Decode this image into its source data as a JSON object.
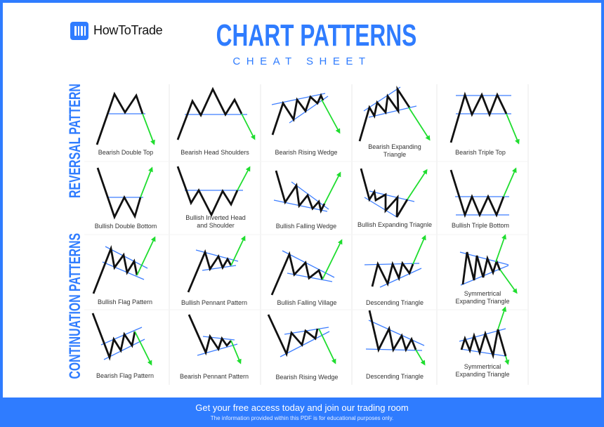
{
  "brand": {
    "logo_text": "HowToTrade",
    "accent": "#2f7cff"
  },
  "header": {
    "title": "CHART PATTERNS",
    "subtitle": "CHEAT SHEET"
  },
  "sections": {
    "reversal": "REVERSAL PATTERN",
    "continuation": "CONTINUATION PATTERNS"
  },
  "colors": {
    "price_line": "#111111",
    "trend_line": "#3d7eff",
    "breakout_arrow": "#1fdd2f",
    "divider": "#e9e9e9"
  },
  "patterns": [
    {
      "label": "Bearish Double Top"
    },
    {
      "label": "Bearish Head Shoulders"
    },
    {
      "label": "Bearish Rising Wedge"
    },
    {
      "label": "Bearish Expanding Triangle"
    },
    {
      "label": "Bearish Triple Top"
    },
    {
      "label": "Bullish Double Bottom"
    },
    {
      "label": "Bullish Inverted Head and Shoulder"
    },
    {
      "label": "Bullish Falling Wedge"
    },
    {
      "label": "Bullish Expanding Triagnle"
    },
    {
      "label": "Bullish Triple Bottom"
    },
    {
      "label": "Bullish Flag Pattern"
    },
    {
      "label": "Bullish Pennant Pattern"
    },
    {
      "label": "Bullish Falling Village"
    },
    {
      "label": "Descending Triangle"
    },
    {
      "label": "Symmertrical Expanding Triangle"
    },
    {
      "label": "Bearish Flag Pattern"
    },
    {
      "label": "Bearish Pennant Pattern"
    },
    {
      "label": "Bearish Rising Wedge"
    },
    {
      "label": "Descending Triangle"
    },
    {
      "label": "Symmertrical Expanding Triangle"
    }
  ],
  "footer": {
    "cta": "Get your free access today and join our trading room",
    "disclaimer": "The information provided within this PDF is for educational purposes only."
  }
}
